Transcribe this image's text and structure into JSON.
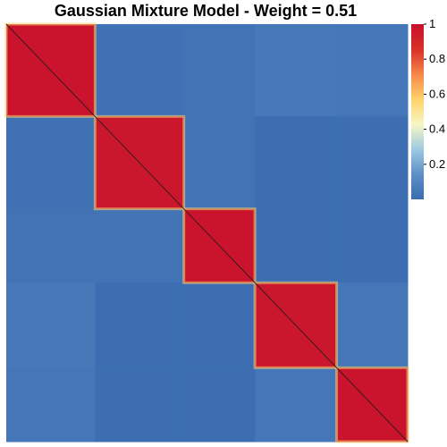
{
  "chart_data": {
    "type": "heatmap",
    "title": "Gaussian Mixture Model - Weight = 0.51",
    "cluster_sizes": [
      25,
      25,
      20,
      23,
      20
    ],
    "blocks": [
      [
        0.98,
        0.02,
        0.03,
        0.05,
        0.04
      ],
      [
        0.02,
        0.97,
        0.03,
        0.01,
        0.01
      ],
      [
        0.03,
        0.03,
        0.98,
        0.01,
        0.01
      ],
      [
        0.05,
        0.01,
        0.01,
        0.97,
        0.04
      ],
      [
        0.04,
        0.01,
        0.01,
        0.04,
        0.98
      ]
    ],
    "colorbar": {
      "range": [
        0,
        1
      ],
      "ticks": [
        0.2,
        0.4,
        0.6,
        0.8,
        1
      ],
      "tick_labels": [
        "0.2",
        "0.4",
        "0.6",
        "0.8",
        "1"
      ],
      "colors": [
        "#3b6cb1",
        "#5d8fc6",
        "#9ecae1",
        "#f7f7c4",
        "#fdd26a",
        "#f7874a",
        "#d73027",
        "#c8102e"
      ]
    }
  }
}
